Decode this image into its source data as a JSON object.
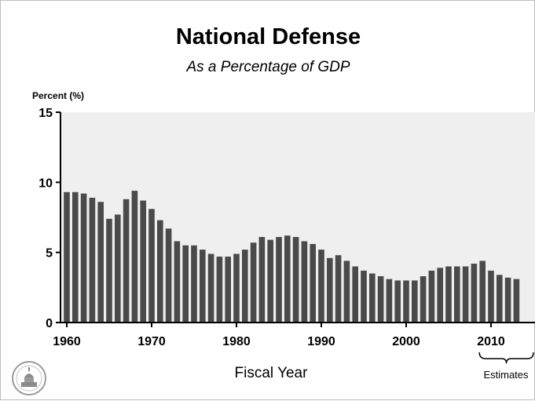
{
  "chart_data": {
    "type": "bar",
    "title": "National Defense",
    "subtitle": "As a Percentage of GDP",
    "ylabel": "Percent (%)",
    "xlabel": "Fiscal Year",
    "ylim": [
      0,
      15
    ],
    "yticks": [
      0,
      5,
      10,
      15
    ],
    "xticks": [
      1960,
      1970,
      1980,
      1990,
      2000,
      2010
    ],
    "annotation": "Estimates",
    "estimate_years": [
      2009,
      2010,
      2011,
      2012,
      2013
    ],
    "bar_color": "#4a4a4a",
    "plot_background": "#efefef",
    "grid": false,
    "categories": [
      1960,
      1961,
      1962,
      1963,
      1964,
      1965,
      1966,
      1967,
      1968,
      1969,
      1970,
      1971,
      1972,
      1973,
      1974,
      1975,
      1976,
      1977,
      1978,
      1979,
      1980,
      1981,
      1982,
      1983,
      1984,
      1985,
      1986,
      1987,
      1988,
      1989,
      1990,
      1991,
      1992,
      1993,
      1994,
      1995,
      1996,
      1997,
      1998,
      1999,
      2000,
      2001,
      2002,
      2003,
      2004,
      2005,
      2006,
      2007,
      2008,
      2009,
      2010,
      2011,
      2012,
      2013
    ],
    "values": [
      9.3,
      9.3,
      9.2,
      8.9,
      8.6,
      7.4,
      7.7,
      8.8,
      9.4,
      8.7,
      8.1,
      7.3,
      6.7,
      5.8,
      5.5,
      5.5,
      5.2,
      4.9,
      4.7,
      4.7,
      4.9,
      5.2,
      5.7,
      6.1,
      5.9,
      6.1,
      6.2,
      6.1,
      5.8,
      5.6,
      5.2,
      4.6,
      4.8,
      4.4,
      4.0,
      3.7,
      3.5,
      3.3,
      3.1,
      3.0,
      3.0,
      3.0,
      3.3,
      3.7,
      3.9,
      4.0,
      4.0,
      4.0,
      4.2,
      4.4,
      3.7,
      3.4,
      3.2,
      3.1
    ]
  }
}
